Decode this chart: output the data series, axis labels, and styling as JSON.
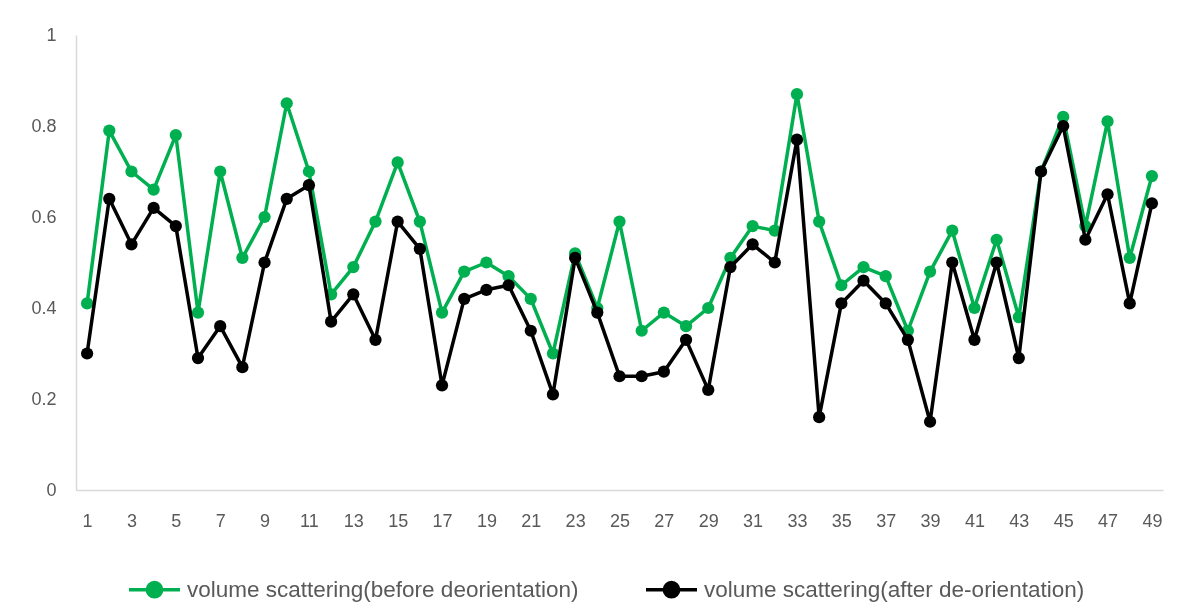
{
  "chart_data": {
    "type": "line",
    "x": [
      1,
      2,
      3,
      4,
      5,
      6,
      7,
      8,
      9,
      10,
      11,
      12,
      13,
      14,
      15,
      16,
      17,
      18,
      19,
      20,
      21,
      22,
      23,
      24,
      25,
      26,
      27,
      28,
      29,
      30,
      31,
      32,
      33,
      34,
      35,
      36,
      37,
      38,
      39,
      40,
      41,
      42,
      43,
      44,
      45,
      46,
      47,
      48,
      49
    ],
    "series": [
      {
        "name": "volume scattering(before deorientation)",
        "color": "#00b050",
        "values": [
          0.41,
          0.79,
          0.7,
          0.66,
          0.78,
          0.39,
          0.7,
          0.51,
          0.6,
          0.85,
          0.7,
          0.43,
          0.49,
          0.59,
          0.72,
          0.59,
          0.39,
          0.48,
          0.5,
          0.47,
          0.42,
          0.3,
          0.52,
          0.4,
          0.59,
          0.35,
          0.39,
          0.36,
          0.4,
          0.51,
          0.58,
          0.57,
          0.87,
          0.59,
          0.45,
          0.49,
          0.47,
          0.35,
          0.48,
          0.57,
          0.4,
          0.55,
          0.38,
          0.7,
          0.82,
          0.58,
          0.81,
          0.51,
          0.69
        ]
      },
      {
        "name": "volume scattering(after de-orientation)",
        "color": "#000000",
        "values": [
          0.3,
          0.64,
          0.54,
          0.62,
          0.58,
          0.29,
          0.36,
          0.27,
          0.5,
          0.64,
          0.67,
          0.37,
          0.43,
          0.33,
          0.59,
          0.53,
          0.23,
          0.42,
          0.44,
          0.45,
          0.35,
          0.21,
          0.51,
          0.39,
          0.25,
          0.25,
          0.26,
          0.33,
          0.22,
          0.49,
          0.54,
          0.5,
          0.77,
          0.16,
          0.41,
          0.46,
          0.41,
          0.33,
          0.15,
          0.5,
          0.33,
          0.5,
          0.29,
          0.7,
          0.8,
          0.55,
          0.65,
          0.41,
          0.63
        ]
      }
    ],
    "xlim": [
      0.5,
      49.5
    ],
    "xticks": [
      1,
      3,
      5,
      7,
      9,
      11,
      13,
      15,
      17,
      19,
      21,
      23,
      25,
      27,
      29,
      31,
      33,
      35,
      37,
      39,
      41,
      43,
      45,
      47,
      49
    ],
    "ylim": [
      0,
      1
    ],
    "yticks": [
      0,
      0.2,
      0.4,
      0.6,
      0.8,
      1
    ],
    "legend": "bottom",
    "marker": "circle",
    "line_style": "solid"
  }
}
